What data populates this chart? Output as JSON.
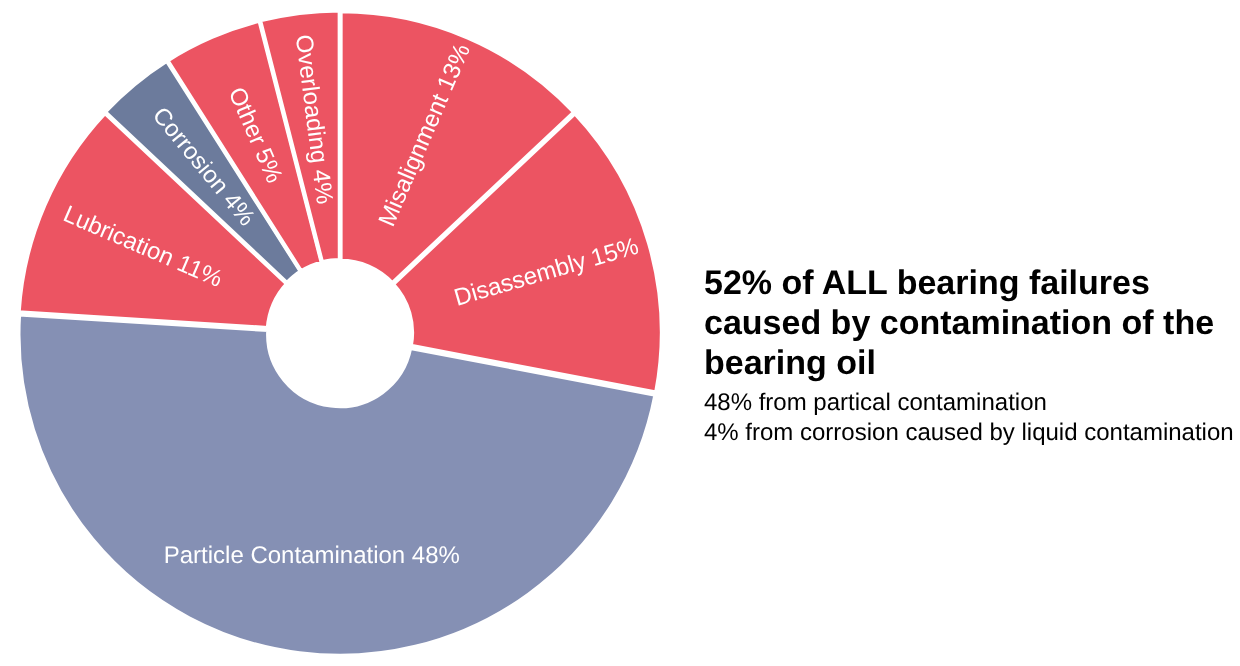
{
  "chart_data": {
    "type": "donut",
    "title": "52% of ALL bearing failures caused by contamination of the bearing oil",
    "categories": [
      "Misalignment",
      "Disassembly",
      "Particle Contamination",
      "Lubrication",
      "Corrosion",
      "Other",
      "Overloading"
    ],
    "values": [
      13,
      15,
      48,
      11,
      4,
      5,
      4
    ],
    "value_labels": [
      "13%",
      "15%",
      "48%",
      "11%",
      "4%",
      "5%",
      "4%"
    ],
    "colors": [
      "#ec5462",
      "#ec5462",
      "#8590b4",
      "#ec5462",
      "#6c7b9c",
      "#ec5462",
      "#ec5462"
    ],
    "annotations": [
      "48% from partical contamination",
      "4% from corrosion caused by liquid contamination"
    ],
    "legend": false
  }
}
